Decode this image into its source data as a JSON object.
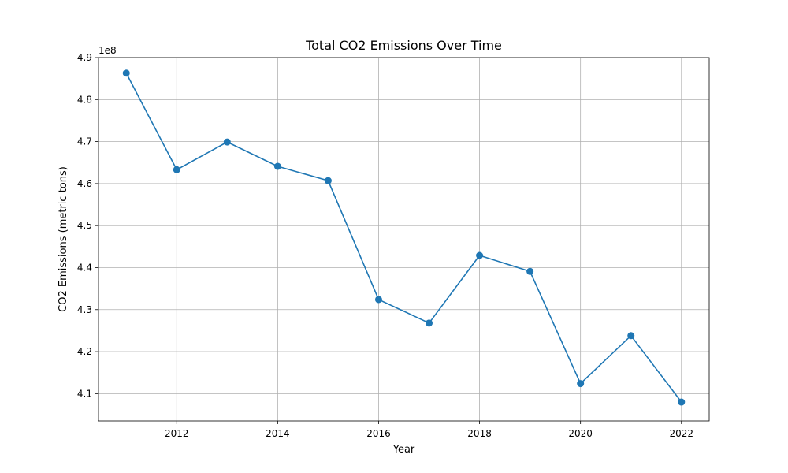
{
  "chart_data": {
    "type": "line",
    "title": "Total CO2 Emissions Over Time",
    "xlabel": "Year",
    "ylabel": "CO2 Emissions (metric tons)",
    "y_offset_label": "1e8",
    "y_scale": 100000000,
    "x": [
      2011,
      2012,
      2013,
      2014,
      2015,
      2016,
      2017,
      2018,
      2019,
      2020,
      2021,
      2022
    ],
    "series": [
      {
        "values": [
          486300000,
          463300000,
          469900000,
          464100000,
          460700000,
          432400000,
          426800000,
          442900000,
          439100000,
          412400000,
          423800000,
          408000000
        ]
      }
    ],
    "xlim": [
      2010.45,
      2022.55
    ],
    "ylim": [
      403500000,
      490000000
    ],
    "x_ticks": [
      2012,
      2014,
      2016,
      2018,
      2020,
      2022
    ],
    "y_ticks": [
      4.1,
      4.2,
      4.3,
      4.4,
      4.5,
      4.6,
      4.7,
      4.8,
      4.9
    ],
    "grid": true,
    "line_color": "#1f77b4",
    "marker": "circle"
  }
}
